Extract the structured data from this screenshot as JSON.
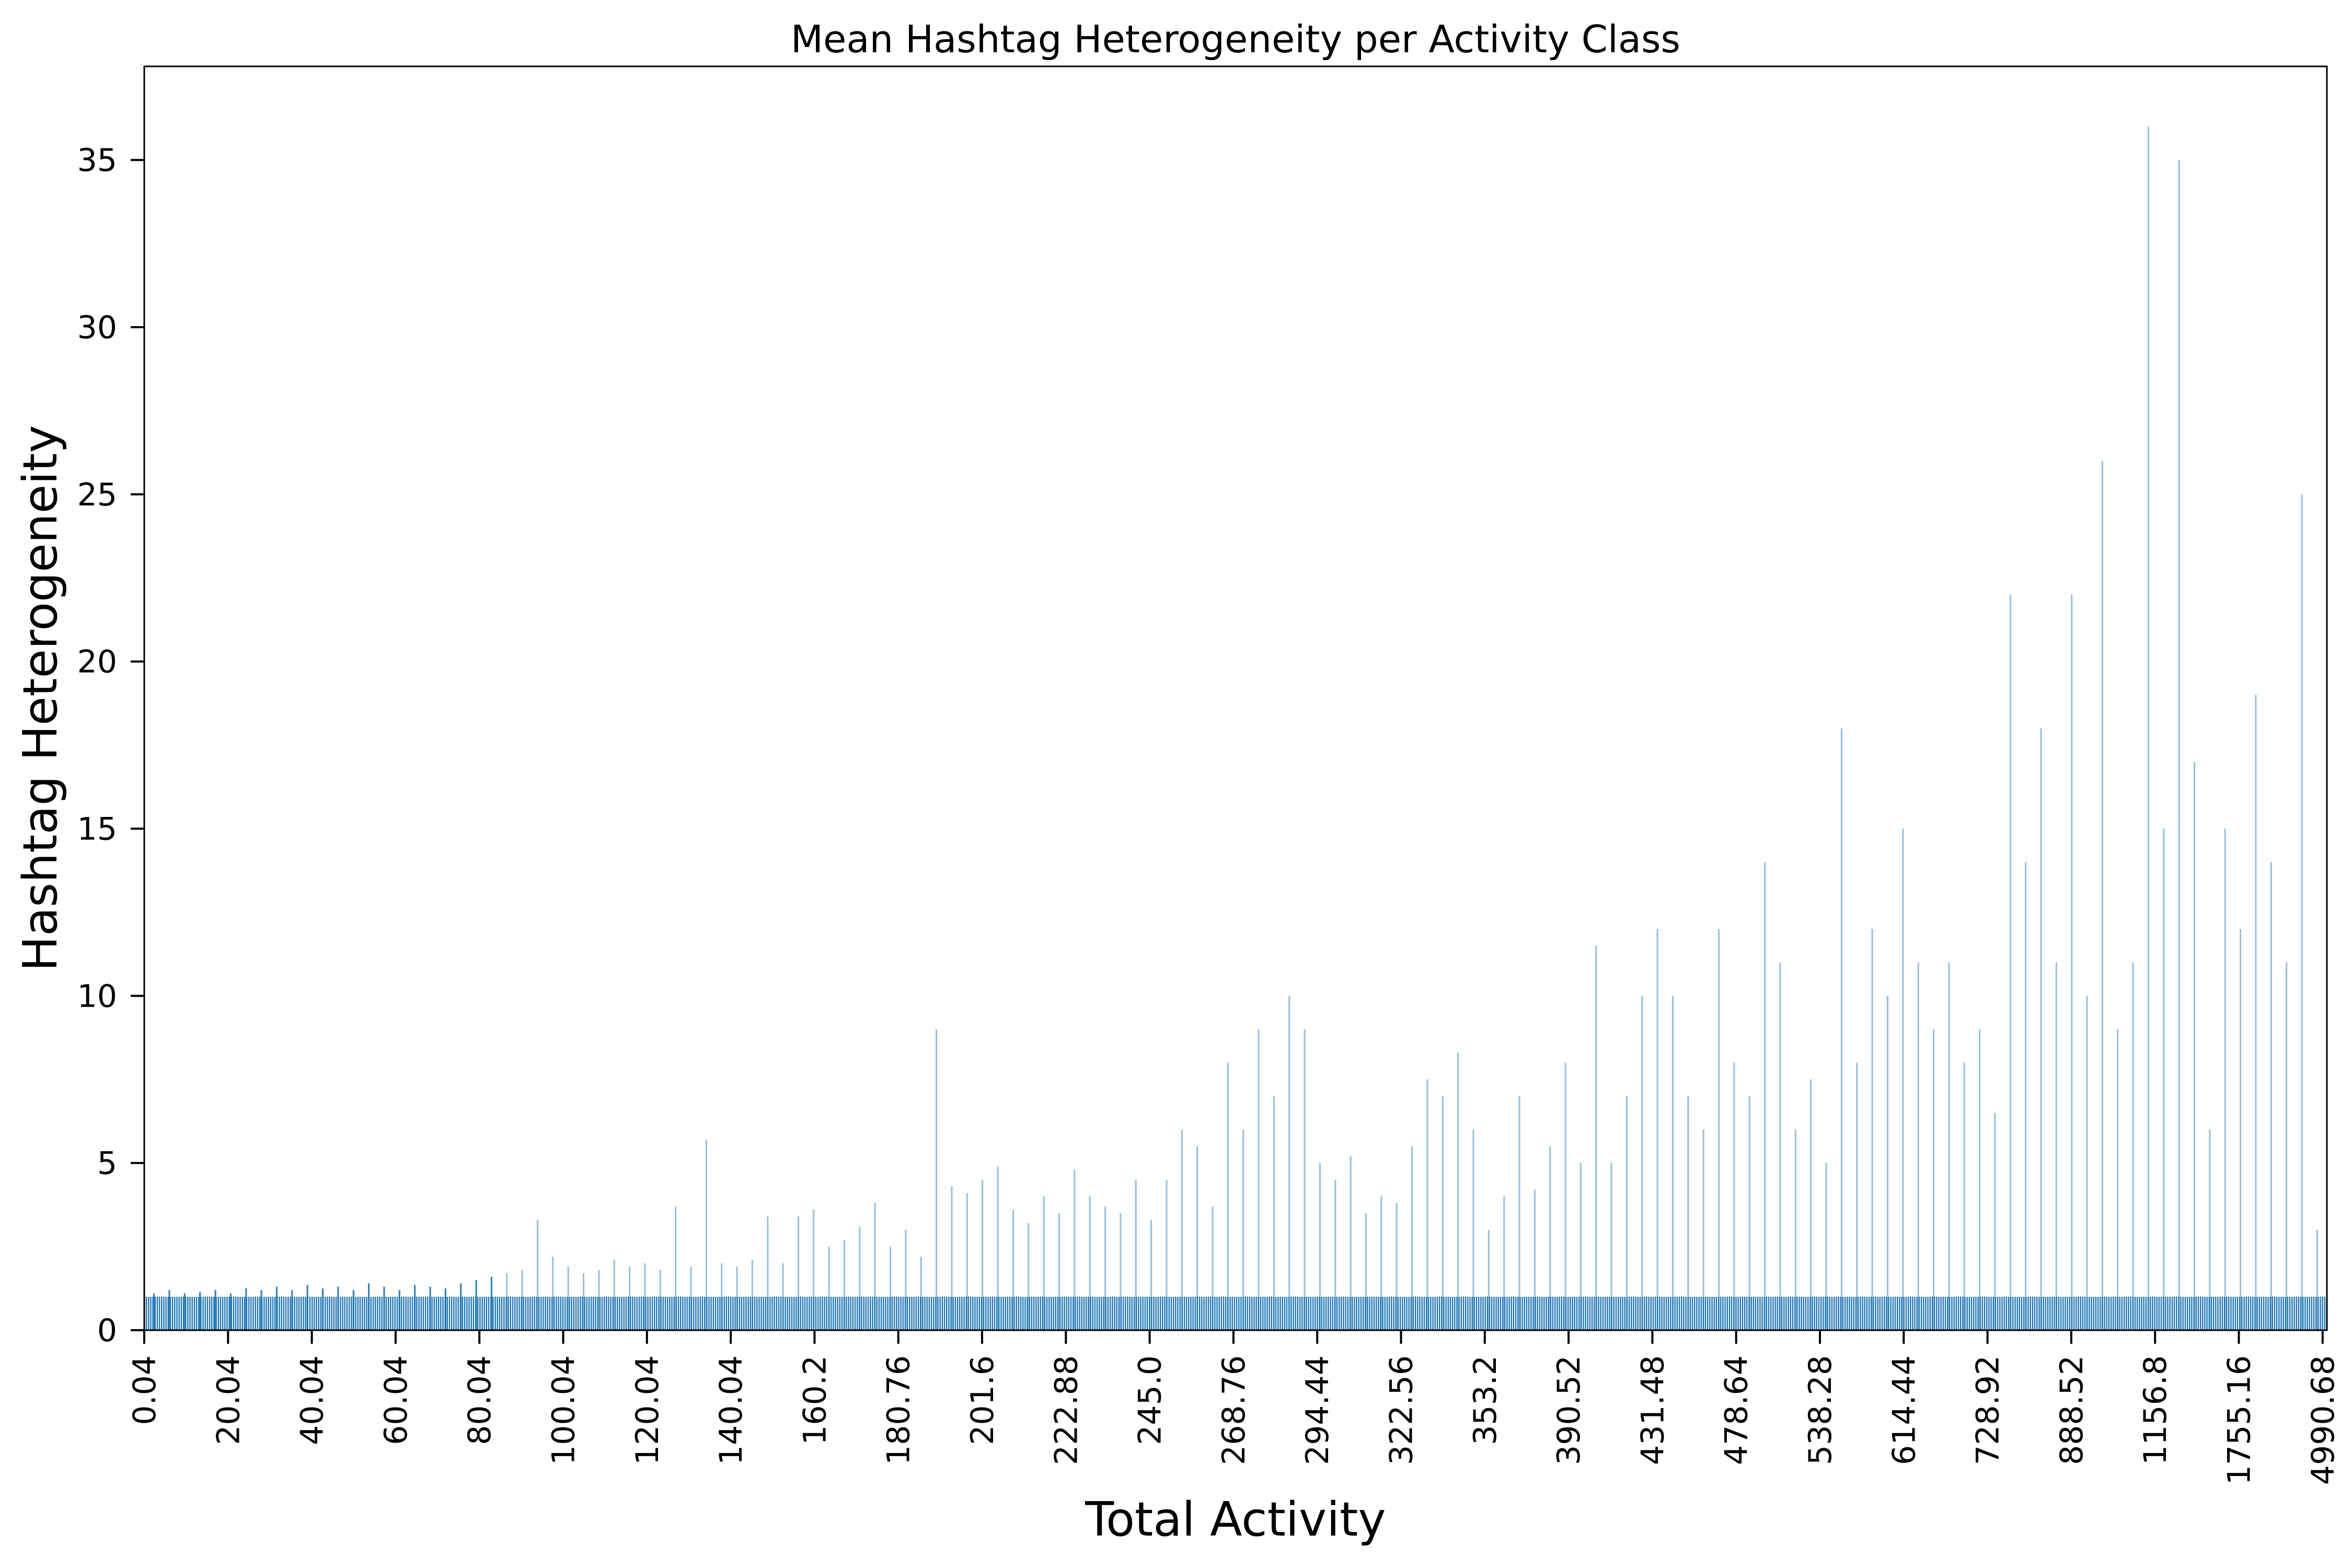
{
  "chart_data": {
    "type": "bar",
    "title": "Mean Hashtag Heterogeneity per Activity Class",
    "xlabel": "Total Activity",
    "ylabel": "Hashtag Heterogeneity",
    "ylim": [
      0,
      37.8
    ],
    "y_ticks": [
      0,
      5,
      10,
      15,
      20,
      25,
      30,
      35
    ],
    "x_tick_labels": [
      "0.04",
      "20.04",
      "40.04",
      "60.04",
      "80.04",
      "100.04",
      "120.04",
      "140.04",
      "160.2",
      "180.76",
      "201.6",
      "222.88",
      "245.0",
      "268.76",
      "294.44",
      "322.56",
      "353.2",
      "390.52",
      "431.48",
      "478.64",
      "538.28",
      "614.44",
      "728.92",
      "888.52",
      "1156.8",
      "1755.16",
      "4990.68"
    ],
    "grid": false,
    "legend": "none",
    "bar_color": "#1f77b4",
    "series": [
      {
        "values": [
          1.1,
          1.2,
          1.1,
          1.15,
          1.2,
          1.1,
          1.25,
          1.2,
          1.3,
          1.2,
          1.35,
          1.25,
          1.3,
          1.2,
          1.4,
          1.3,
          1.2,
          1.35,
          1.3,
          1.25,
          1.4,
          1.5,
          1.6,
          1.7,
          1.8,
          3.3,
          2.2,
          1.9,
          1.7,
          1.8,
          2.1,
          1.9,
          2.0,
          1.8,
          3.7,
          1.9,
          5.7,
          2.0,
          1.9,
          2.1,
          3.4,
          2.0,
          3.4,
          3.6,
          2.5,
          2.7,
          3.1,
          3.8,
          2.5,
          3.0,
          2.2,
          9.0,
          4.3,
          4.1,
          4.5,
          4.9,
          3.6,
          3.2,
          4.0,
          3.5,
          4.8,
          4.0,
          3.7,
          3.5,
          4.5,
          3.3,
          4.5,
          6.0,
          5.5,
          3.7,
          8.0,
          6.0,
          9.0,
          7.0,
          10.0,
          9.0,
          5.0,
          4.5,
          5.2,
          3.5,
          4.0,
          3.8,
          5.5,
          7.5,
          7.0,
          8.3,
          6.0,
          3.0,
          4.0,
          7.0,
          4.2,
          5.5,
          8.0,
          5.0,
          11.5,
          5.0,
          7.0,
          10.0,
          12.0,
          10.0,
          7.0,
          6.0,
          12.0,
          8.0,
          7.0,
          14.0,
          11.0,
          6.0,
          7.5,
          5.0,
          18.0,
          8.0,
          12.0,
          10.0,
          15.0,
          11.0,
          9.0,
          11.0,
          8.0,
          9.0,
          6.5,
          22.0,
          14.0,
          18.0,
          11.0,
          22.0,
          10.0,
          26.0,
          9.0,
          11.0,
          36.0,
          15.0,
          35.0,
          17.0,
          6.0,
          15.0,
          12.0,
          19.0,
          14.0,
          11.0,
          25.0,
          3.0
        ]
      }
    ]
  }
}
